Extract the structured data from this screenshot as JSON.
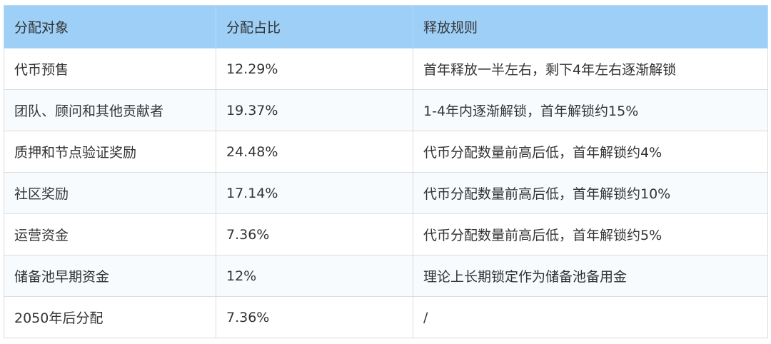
{
  "colors": {
    "header_bg": "#9dcff7",
    "text": "#333333",
    "border": "#dcdcdc",
    "alt_row_bg": "#f7fbfe"
  },
  "table": {
    "headers": [
      "分配对象",
      "分配占比",
      "释放规则"
    ],
    "rows": [
      [
        "代币预售",
        "12.29%",
        "首年释放一半左右，剩下4年左右逐渐解锁"
      ],
      [
        "团队、顾问和其他贡献者",
        "19.37%",
        "1-4年内逐渐解锁，首年解锁约15%"
      ],
      [
        "质押和节点验证奖励",
        "24.48%",
        "代币分配数量前高后低，首年解锁约4%"
      ],
      [
        "社区奖励",
        "17.14%",
        "代币分配数量前高后低，首年解锁约10%"
      ],
      [
        "运营资金",
        "7.36%",
        "代币分配数量前高后低，首年解锁约5%"
      ],
      [
        "储备池早期资金",
        "12%",
        "理论上长期锁定作为储备池备用金"
      ],
      [
        "2050年后分配",
        "7.36%",
        "/"
      ]
    ]
  }
}
